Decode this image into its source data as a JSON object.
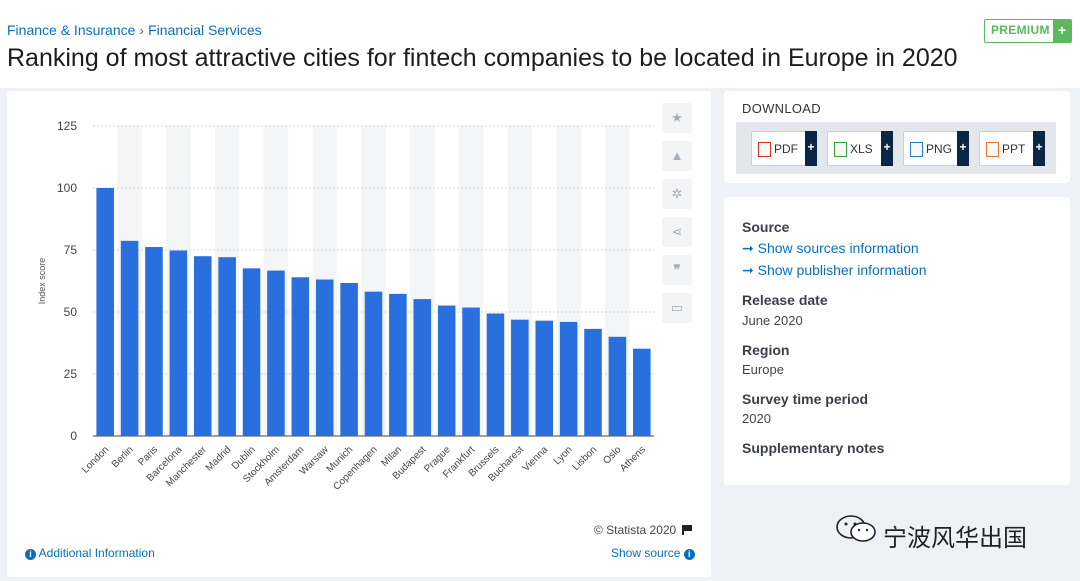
{
  "breadcrumb": [
    "Finance & Insurance",
    "Financial Services"
  ],
  "breadcrumb_sep": "›",
  "page_title": "Ranking of most attractive cities for fintech companies to be located in Europe in 2020",
  "premium_label": "PREMIUM",
  "premium_plus": "+",
  "chart_data": {
    "type": "bar",
    "categories": [
      "London",
      "Berlin",
      "Paris",
      "Barcelona",
      "Manchester",
      "Madrid",
      "Dublin",
      "Stockholm",
      "Amsterdam",
      "Warsaw",
      "Munich",
      "Copenhagen",
      "Milan",
      "Budapest",
      "Prague",
      "Frankfurt",
      "Brussels",
      "Bucharest",
      "Vienna",
      "Lyon",
      "Lisbon",
      "Oslo",
      "Athens"
    ],
    "values": [
      100,
      78.7,
      76.2,
      74.8,
      72.5,
      72.1,
      67.6,
      66.7,
      64,
      63.1,
      61.7,
      58.2,
      57.3,
      55.2,
      52.6,
      51.8,
      49.4,
      46.9,
      46.5,
      46,
      43.2,
      40,
      35.2
    ],
    "ylabel": "Index score",
    "ylim": [
      0,
      125
    ],
    "yticks": [
      0,
      25,
      50,
      75,
      100,
      125
    ],
    "grid": true,
    "bar_color": "#2a6fde"
  },
  "side_icons": [
    "star-icon",
    "bell-icon",
    "gear-icon",
    "share-icon",
    "quote-icon",
    "print-icon"
  ],
  "copyright": "© Statista 2020",
  "additional_info": "Additional Information",
  "show_source": "Show source",
  "download": {
    "title": "DOWNLOAD",
    "buttons": [
      {
        "label": "PDF",
        "icon_color": "#d9302a"
      },
      {
        "label": "XLS",
        "icon_color": "#3aa13a"
      },
      {
        "label": "PNG",
        "icon_color": "#2b7bd0"
      },
      {
        "label": "PPT",
        "icon_color": "#e6732b"
      }
    ]
  },
  "meta": {
    "source_label": "Source",
    "sources_link": "Show sources information",
    "publisher_link": "Show publisher information",
    "release_label": "Release date",
    "release_value": "June 2020",
    "region_label": "Region",
    "region_value": "Europe",
    "survey_label": "Survey time period",
    "survey_value": "2020",
    "notes_label": "Supplementary notes"
  },
  "watermark": "宁波风华出国"
}
